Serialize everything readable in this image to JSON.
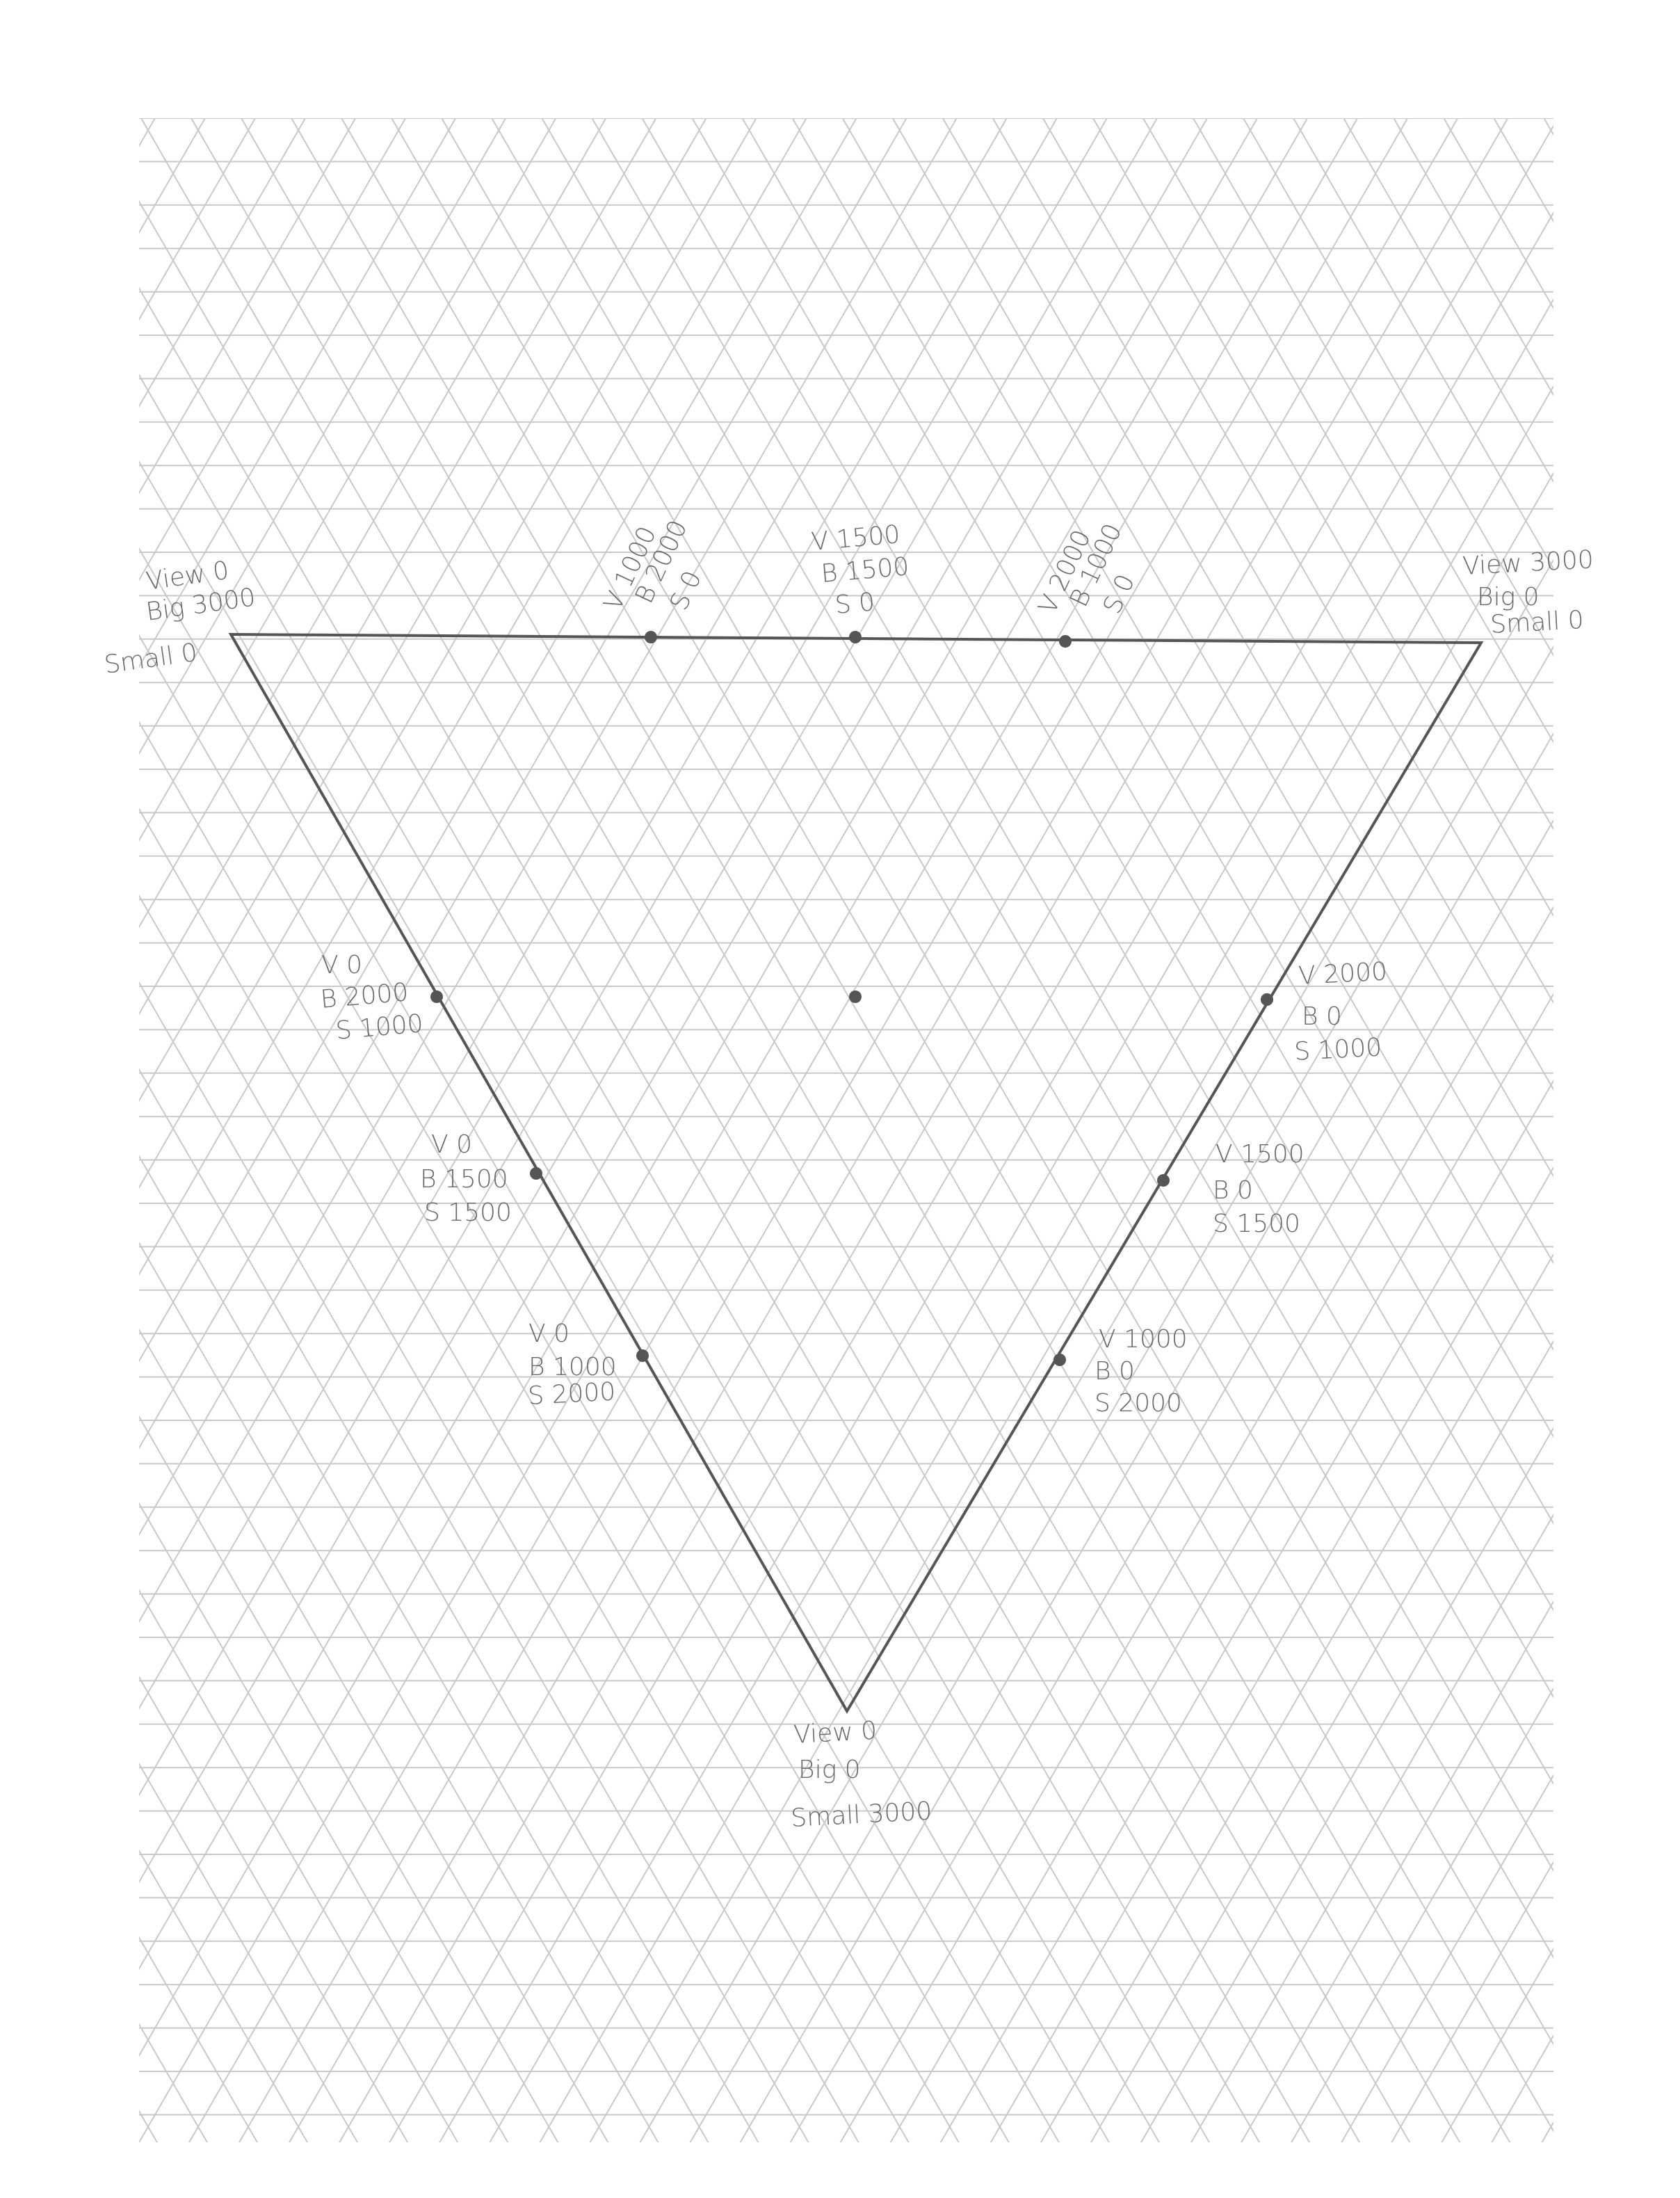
{
  "nodes": [
    {
      "lines": [
        "View 0",
        "Big 3000",
        "Small 0"
      ]
    },
    {
      "lines": [
        "View 3000",
        "Big 0",
        "Small 0"
      ]
    },
    {
      "lines": [
        "View 0",
        "Big 0",
        "Small 3000"
      ]
    },
    {
      "lines": [
        "V 1000",
        "B 2000",
        "S 0"
      ]
    },
    {
      "lines": [
        "V 1500",
        "B 1500",
        "S 0"
      ]
    },
    {
      "lines": [
        "V 2000",
        "B 1000",
        "S 0"
      ]
    },
    {
      "lines": [
        "V 0",
        "B 2000",
        "S 1000"
      ]
    },
    {
      "lines": [
        "V 0",
        "B 1500",
        "S 1500"
      ]
    },
    {
      "lines": [
        "V 0",
        "B 1000",
        "S 2000"
      ]
    },
    {
      "lines": [
        "V 2000",
        "B 0",
        "S 1000"
      ]
    },
    {
      "lines": [
        "V 1500",
        "B 0",
        "S 1500"
      ]
    },
    {
      "lines": [
        "V 1000",
        "B 0",
        "S 2000"
      ]
    }
  ]
}
